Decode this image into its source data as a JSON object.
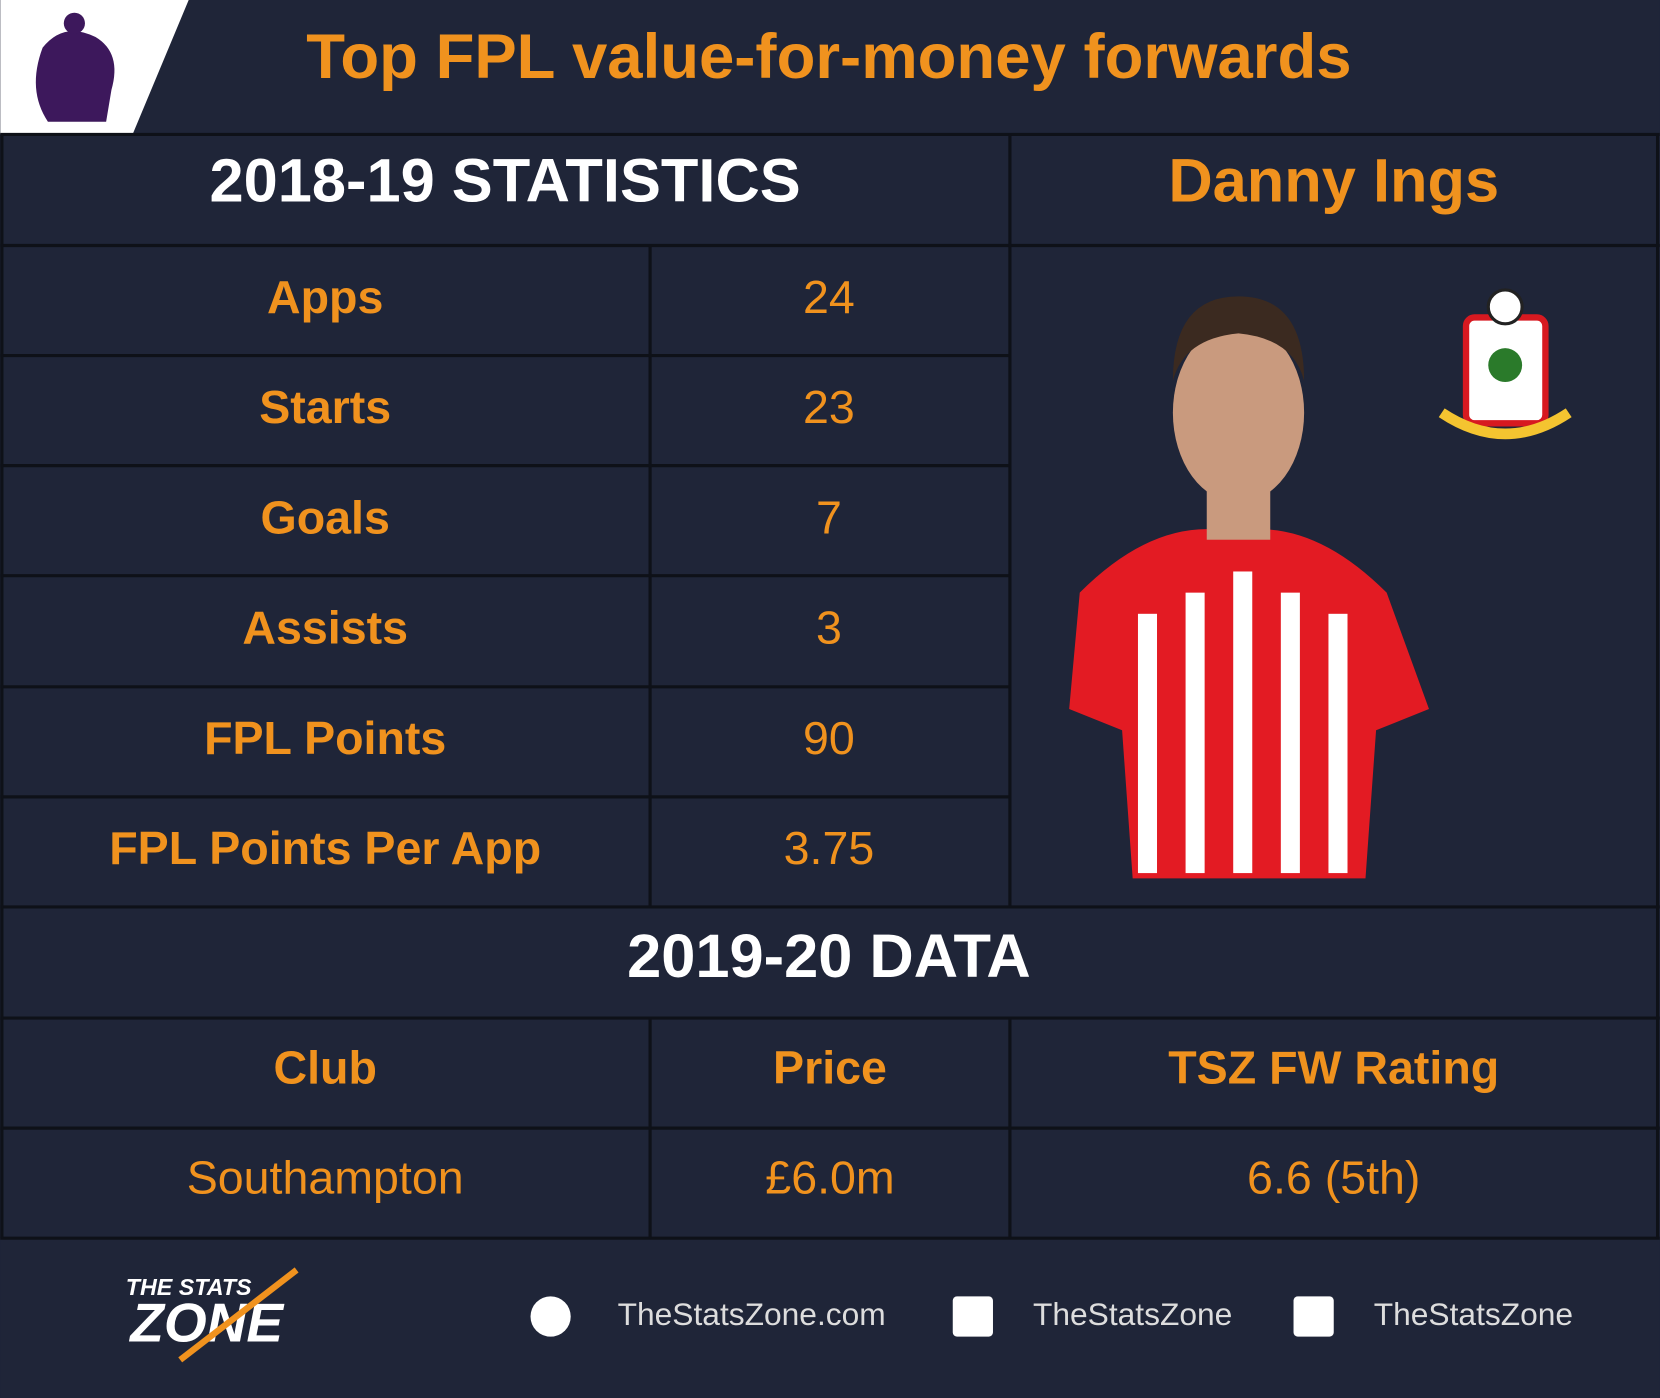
{
  "title": "Top FPL value-for-money forwards",
  "stats": {
    "header": "2018-19 STATISTICS",
    "player": "Danny Ings",
    "rows": [
      [
        "Apps",
        "24"
      ],
      [
        "Starts",
        "23"
      ],
      [
        "Goals",
        "7"
      ],
      [
        "Assists",
        "3"
      ],
      [
        "FPL Points",
        "90"
      ],
      [
        "FPL Points Per App",
        "3.75"
      ]
    ]
  },
  "data": {
    "header": "2019-20 DATA",
    "columns": [
      "Club",
      "Price",
      "TSZ FW Rating"
    ],
    "row": [
      "Southampton",
      "£6.0m",
      "6.6 (5th)"
    ]
  },
  "footer": {
    "logo": [
      "THE STATS",
      "ZONE"
    ],
    "links": [
      "TheStatsZone.com",
      "TheStatsZone",
      "TheStatsZone"
    ]
  }
}
